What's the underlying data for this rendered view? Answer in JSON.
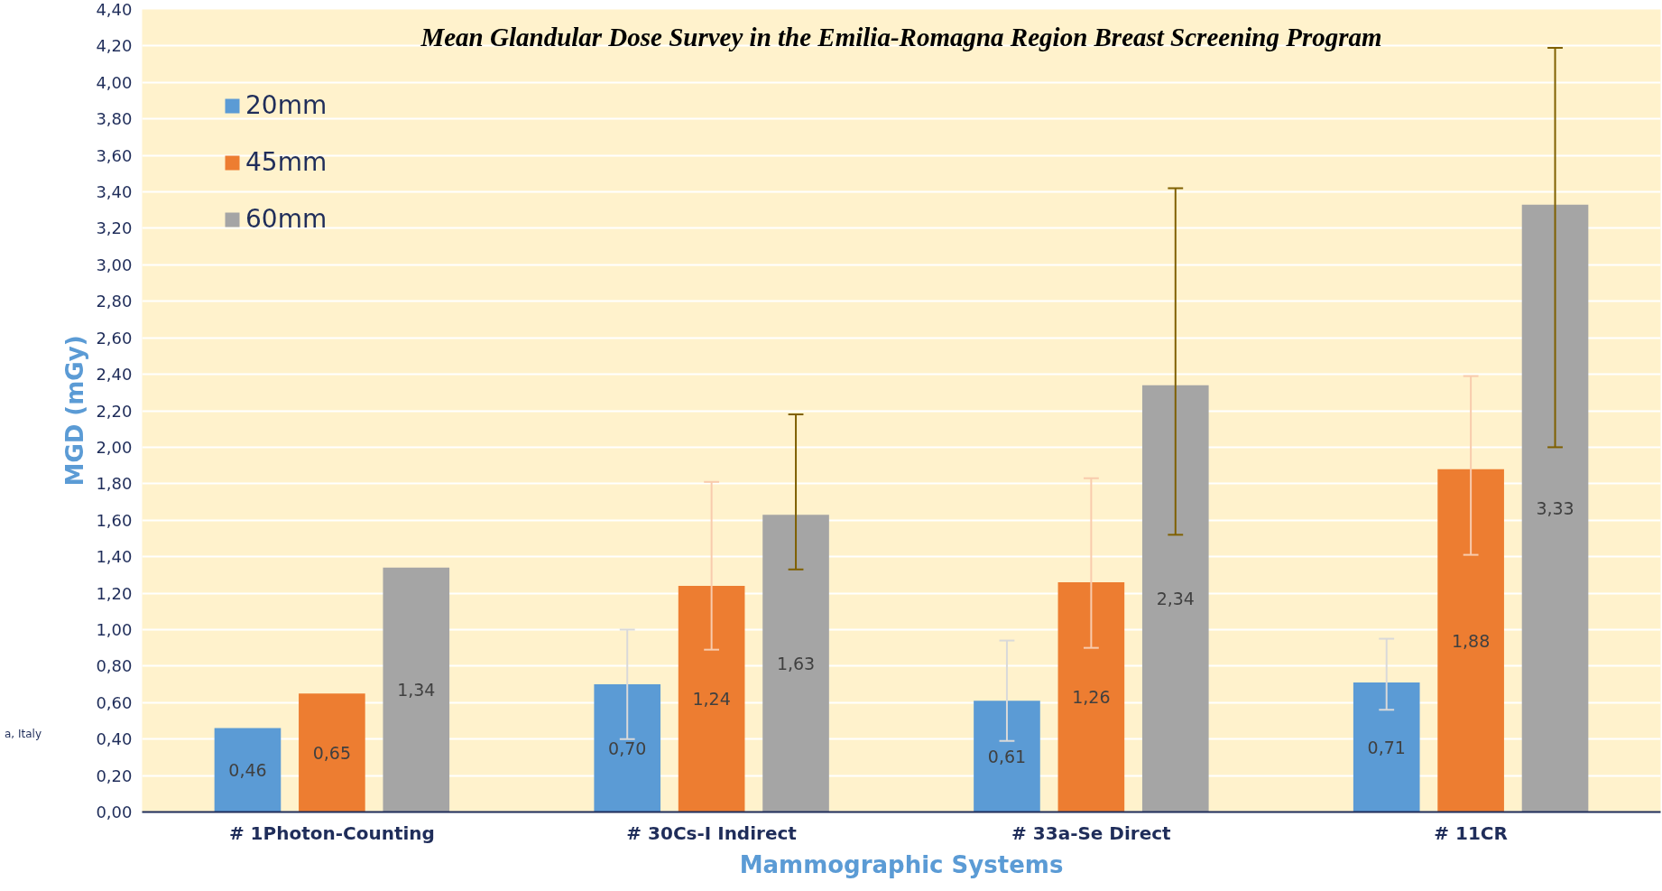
{
  "chart_data": {
    "type": "bar",
    "title": "Mean Glandular Dose Survey in the Emilia-Romagna Region Breast Screening Program",
    "xlabel": "Mammographic Systems",
    "ylabel": "MGD (mGy)",
    "categories": [
      "# 1Photon-Counting",
      "# 30Cs-I Indirect",
      "# 33a-Se Direct",
      "# 11CR"
    ],
    "series": [
      {
        "name": "20mm",
        "color": "#5b9bd5",
        "values": [
          0.46,
          0.7,
          0.61,
          0.71
        ],
        "value_labels": [
          "0,46",
          "0,70",
          "0,61",
          "0,71"
        ],
        "errors": [
          null,
          [
            0.4,
            1.0
          ],
          [
            0.39,
            0.94
          ],
          [
            0.56,
            0.95
          ]
        ]
      },
      {
        "name": "45mm",
        "color": "#ed7d31",
        "values": [
          0.65,
          1.24,
          1.26,
          1.88
        ],
        "value_labels": [
          "0,65",
          "1,24",
          "1,26",
          "1,88"
        ],
        "errors": [
          null,
          [
            0.89,
            1.81
          ],
          [
            0.9,
            1.83
          ],
          [
            1.41,
            2.39
          ]
        ]
      },
      {
        "name": "60mm",
        "color": "#a5a5a5",
        "values": [
          1.34,
          1.63,
          2.34,
          3.33
        ],
        "value_labels": [
          "1,34",
          "1,63",
          "2,34",
          "3,33"
        ],
        "errors": [
          null,
          [
            1.33,
            2.18
          ],
          [
            1.52,
            3.42
          ],
          [
            2.0,
            4.19
          ]
        ]
      }
    ],
    "ylim": [
      0,
      4.4
    ],
    "yticks": [
      {
        "value": 0,
        "label": "0,00"
      },
      {
        "value": 0.2,
        "label": "0,20"
      },
      {
        "value": 0.4,
        "label": "0,40"
      },
      {
        "value": 0.6,
        "label": "0,60"
      },
      {
        "value": 0.8,
        "label": "0,80"
      },
      {
        "value": 1.0,
        "label": "1,00"
      },
      {
        "value": 1.2,
        "label": "1,20"
      },
      {
        "value": 1.4,
        "label": "1,40"
      },
      {
        "value": 1.6,
        "label": "1,60"
      },
      {
        "value": 1.8,
        "label": "1,80"
      },
      {
        "value": 2.0,
        "label": "2,00"
      },
      {
        "value": 2.2,
        "label": "2,20"
      },
      {
        "value": 2.4,
        "label": "2,40"
      },
      {
        "value": 2.6,
        "label": "2,60"
      },
      {
        "value": 2.8,
        "label": "2,80"
      },
      {
        "value": 3.0,
        "label": "3,00"
      },
      {
        "value": 3.2,
        "label": "3,20"
      },
      {
        "value": 3.4,
        "label": "3,40"
      },
      {
        "value": 3.6,
        "label": "3,60"
      },
      {
        "value": 3.8,
        "label": "3,80"
      },
      {
        "value": 4.0,
        "label": "4,00"
      },
      {
        "value": 4.2,
        "label": "4,20"
      },
      {
        "value": 4.4,
        "label": "4,40"
      }
    ],
    "grid": "y",
    "legend": "top left",
    "annotations": [
      "a, Italy"
    ]
  }
}
